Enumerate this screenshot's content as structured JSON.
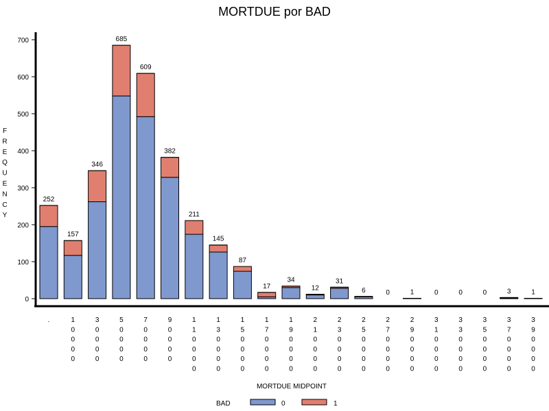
{
  "chart_data": {
    "type": "bar",
    "stacked": true,
    "title": "MORTDUE por BAD",
    "ylabel": "FREQUENCY",
    "xlabel": "MORTDUE MIDPOINT",
    "ylim": [
      0,
      700
    ],
    "yticks": [
      0,
      100,
      200,
      300,
      400,
      500,
      600,
      700
    ],
    "categories": [
      ".",
      "10000",
      "30000",
      "50000",
      "70000",
      "90000",
      "110000",
      "130000",
      "150000",
      "170000",
      "190000",
      "210000",
      "230000",
      "250000",
      "270000",
      "290000",
      "310000",
      "330000",
      "350000",
      "370000",
      "390000"
    ],
    "series": [
      {
        "name": "0",
        "color": "#7f99cf",
        "values": [
          195,
          117,
          262,
          548,
          492,
          328,
          174,
          126,
          74,
          5,
          30,
          10,
          28,
          5,
          0,
          0,
          0,
          0,
          0,
          2,
          0
        ]
      },
      {
        "name": "1",
        "color": "#e07f6f",
        "values": [
          57,
          40,
          84,
          137,
          117,
          54,
          37,
          19,
          13,
          12,
          4,
          2,
          3,
          1,
          0,
          1,
          0,
          0,
          0,
          1,
          1
        ]
      }
    ],
    "totals": [
      252,
      157,
      346,
      685,
      609,
      382,
      211,
      145,
      87,
      17,
      34,
      12,
      31,
      6,
      0,
      1,
      0,
      0,
      0,
      3,
      1
    ],
    "legend": {
      "title": "BAD",
      "position": "bottom"
    }
  }
}
